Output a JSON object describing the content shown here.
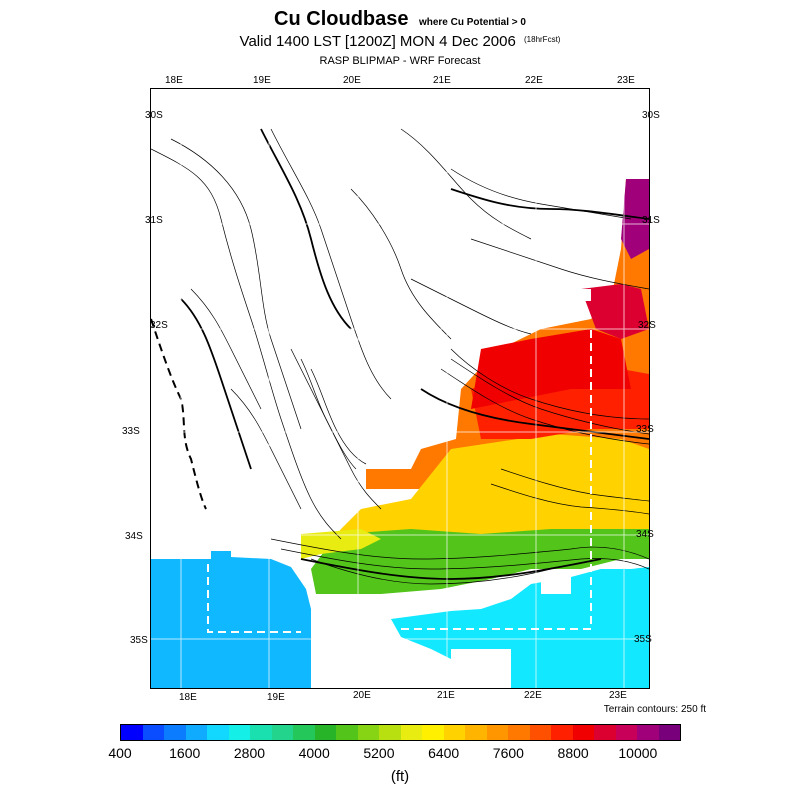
{
  "header": {
    "title": "Cu Cloudbase",
    "title_note": "where Cu Potential > 0",
    "valid_line": "Valid 1400 LST [1200Z] MON 4 Dec 2006",
    "forecast_note": "(18hrFcst)",
    "subtitle": "RASP BLIPMAP - WRF Forecast"
  },
  "map": {
    "top_lon_labels": [
      "18E",
      "19E",
      "20E",
      "21E",
      "22E",
      "23E"
    ],
    "bottom_lon_labels": [
      "18E",
      "19E",
      "20E",
      "21E",
      "22E",
      "23E"
    ],
    "left_lat_labels": [
      "30S",
      "31S",
      "32S",
      "33S",
      "34S",
      "35S"
    ],
    "right_lat_labels": [
      "30S",
      "31S",
      "32S",
      "33S",
      "34S",
      "35S"
    ],
    "terrain_note": "Terrain contours: 250 ft"
  },
  "colorbar": {
    "labels": [
      "400",
      "1600",
      "2800",
      "4000",
      "5200",
      "6400",
      "7600",
      "8800",
      "10000"
    ],
    "unit": "(ft)",
    "colors": [
      "#0000ff",
      "#0a4cff",
      "#0c7cff",
      "#10aaff",
      "#12d8ff",
      "#14f0e8",
      "#1ae0b0",
      "#22d48c",
      "#24c85a",
      "#28b428",
      "#52c41a",
      "#86d414",
      "#b8e010",
      "#e8ec10",
      "#fff000",
      "#ffd200",
      "#ffb400",
      "#ff9600",
      "#ff7800",
      "#ff5000",
      "#ff2000",
      "#f00000",
      "#dc0030",
      "#c8005a",
      "#a0007a",
      "#78007a"
    ]
  }
}
